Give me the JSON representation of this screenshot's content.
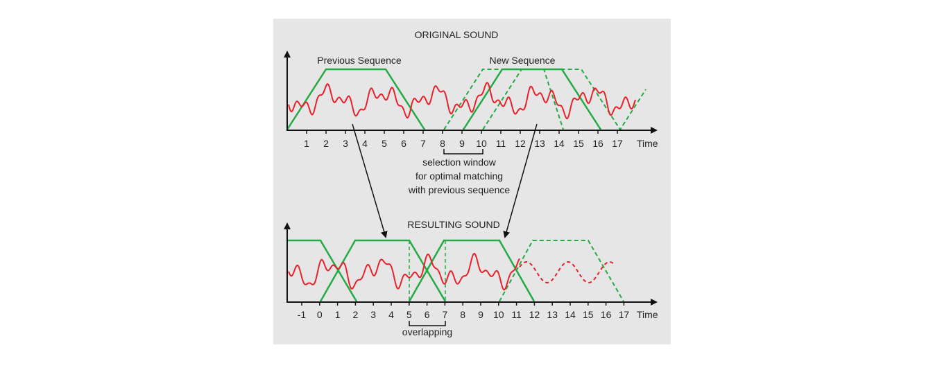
{
  "colors": {
    "background": "#e6e6e6",
    "axis": "#111111",
    "window": "#22aa44",
    "wave": "#e8202a",
    "text": "#222222"
  },
  "top": {
    "title": "ORIGINAL SOUND",
    "previous_label": "Previous Sequence",
    "new_label": "New Sequence",
    "ticks": [
      "1",
      "2",
      "3",
      "4",
      "5",
      "6",
      "7",
      "8",
      "9",
      "10",
      "11",
      "12",
      "13",
      "14",
      "15",
      "16",
      "17"
    ],
    "time_label": "Time",
    "selection_caption": [
      "selection window",
      "for optimal matching",
      "with previous sequence"
    ]
  },
  "bottom": {
    "title": "RESULTING SOUND",
    "ticks": [
      "-1",
      "0",
      "1",
      "2",
      "3",
      "4",
      "5",
      "6",
      "7",
      "8",
      "9",
      "10",
      "11",
      "12",
      "13",
      "14",
      "15",
      "16",
      "17"
    ],
    "time_label": "Time",
    "overlap_caption": "overlapping"
  }
}
